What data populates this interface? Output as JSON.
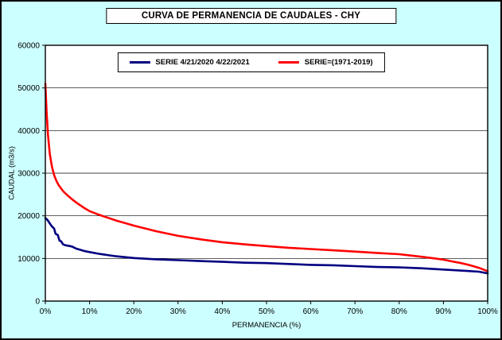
{
  "colors": {
    "background": "#CCFFFF",
    "plot_bg": "#FFFFFF",
    "gridline": "#000000",
    "border": "#000000",
    "serie_recent": "#000080",
    "serie_historic": "#FF0000"
  },
  "chart_data": {
    "type": "line",
    "title": "CURVA DE PERMANENCIA DE CAUDALES - CHY",
    "xlabel": "PERMANENCIA (%)",
    "ylabel": "CAUDAL (m3/s)",
    "xlim": [
      0,
      100
    ],
    "ylim": [
      0,
      60000
    ],
    "grid": "horizontal",
    "legend_position": "top-center",
    "x_ticks": [
      0,
      10,
      20,
      30,
      40,
      50,
      60,
      70,
      80,
      90,
      100
    ],
    "x_tick_labels": [
      "0%",
      "10%",
      "20%",
      "30%",
      "40%",
      "50%",
      "60%",
      "70%",
      "80%",
      "90%",
      "100%"
    ],
    "y_ticks": [
      0,
      10000,
      20000,
      30000,
      40000,
      50000,
      60000
    ],
    "y_tick_labels": [
      "0",
      "10000",
      "20000",
      "30000",
      "40000",
      "50000",
      "60000"
    ],
    "series": [
      {
        "name": "SERIE 4/21/2020 4/22/2021",
        "color": "#000080",
        "x": [
          0,
          0.5,
          1,
          1.5,
          2,
          2.3,
          2.8,
          3.2,
          3.6,
          4,
          4.5,
          5,
          6,
          7,
          8,
          9,
          10,
          12,
          14,
          16,
          18,
          20,
          25,
          30,
          35,
          40,
          45,
          50,
          55,
          60,
          65,
          70,
          75,
          80,
          85,
          90,
          95,
          98,
          100
        ],
        "values": [
          19500,
          19000,
          18200,
          17500,
          17000,
          15800,
          15500,
          14200,
          14000,
          13300,
          13100,
          13000,
          12800,
          12300,
          12000,
          11700,
          11500,
          11100,
          10800,
          10500,
          10300,
          10100,
          9800,
          9600,
          9400,
          9200,
          9000,
          8900,
          8700,
          8500,
          8400,
          8200,
          8000,
          7900,
          7700,
          7400,
          7100,
          6900,
          6500
        ]
      },
      {
        "name": "SERIE=(1971-2019)",
        "color": "#FF0000",
        "x": [
          0,
          0.3,
          0.6,
          1,
          1.5,
          2,
          2.5,
          3,
          4,
          5,
          6,
          7,
          8,
          9,
          10,
          12,
          14,
          16,
          18,
          20,
          25,
          30,
          35,
          40,
          45,
          50,
          55,
          60,
          65,
          70,
          75,
          80,
          85,
          88,
          90,
          92,
          94,
          96,
          98,
          100
        ],
        "values": [
          51000,
          44000,
          39000,
          34500,
          31500,
          29500,
          28200,
          27200,
          25800,
          24800,
          23900,
          23100,
          22400,
          21700,
          21100,
          20300,
          19600,
          18900,
          18300,
          17700,
          16400,
          15300,
          14500,
          13800,
          13300,
          12900,
          12500,
          12200,
          11900,
          11600,
          11300,
          11000,
          10400,
          10000,
          9700,
          9300,
          8900,
          8400,
          7800,
          7000
        ]
      }
    ]
  }
}
